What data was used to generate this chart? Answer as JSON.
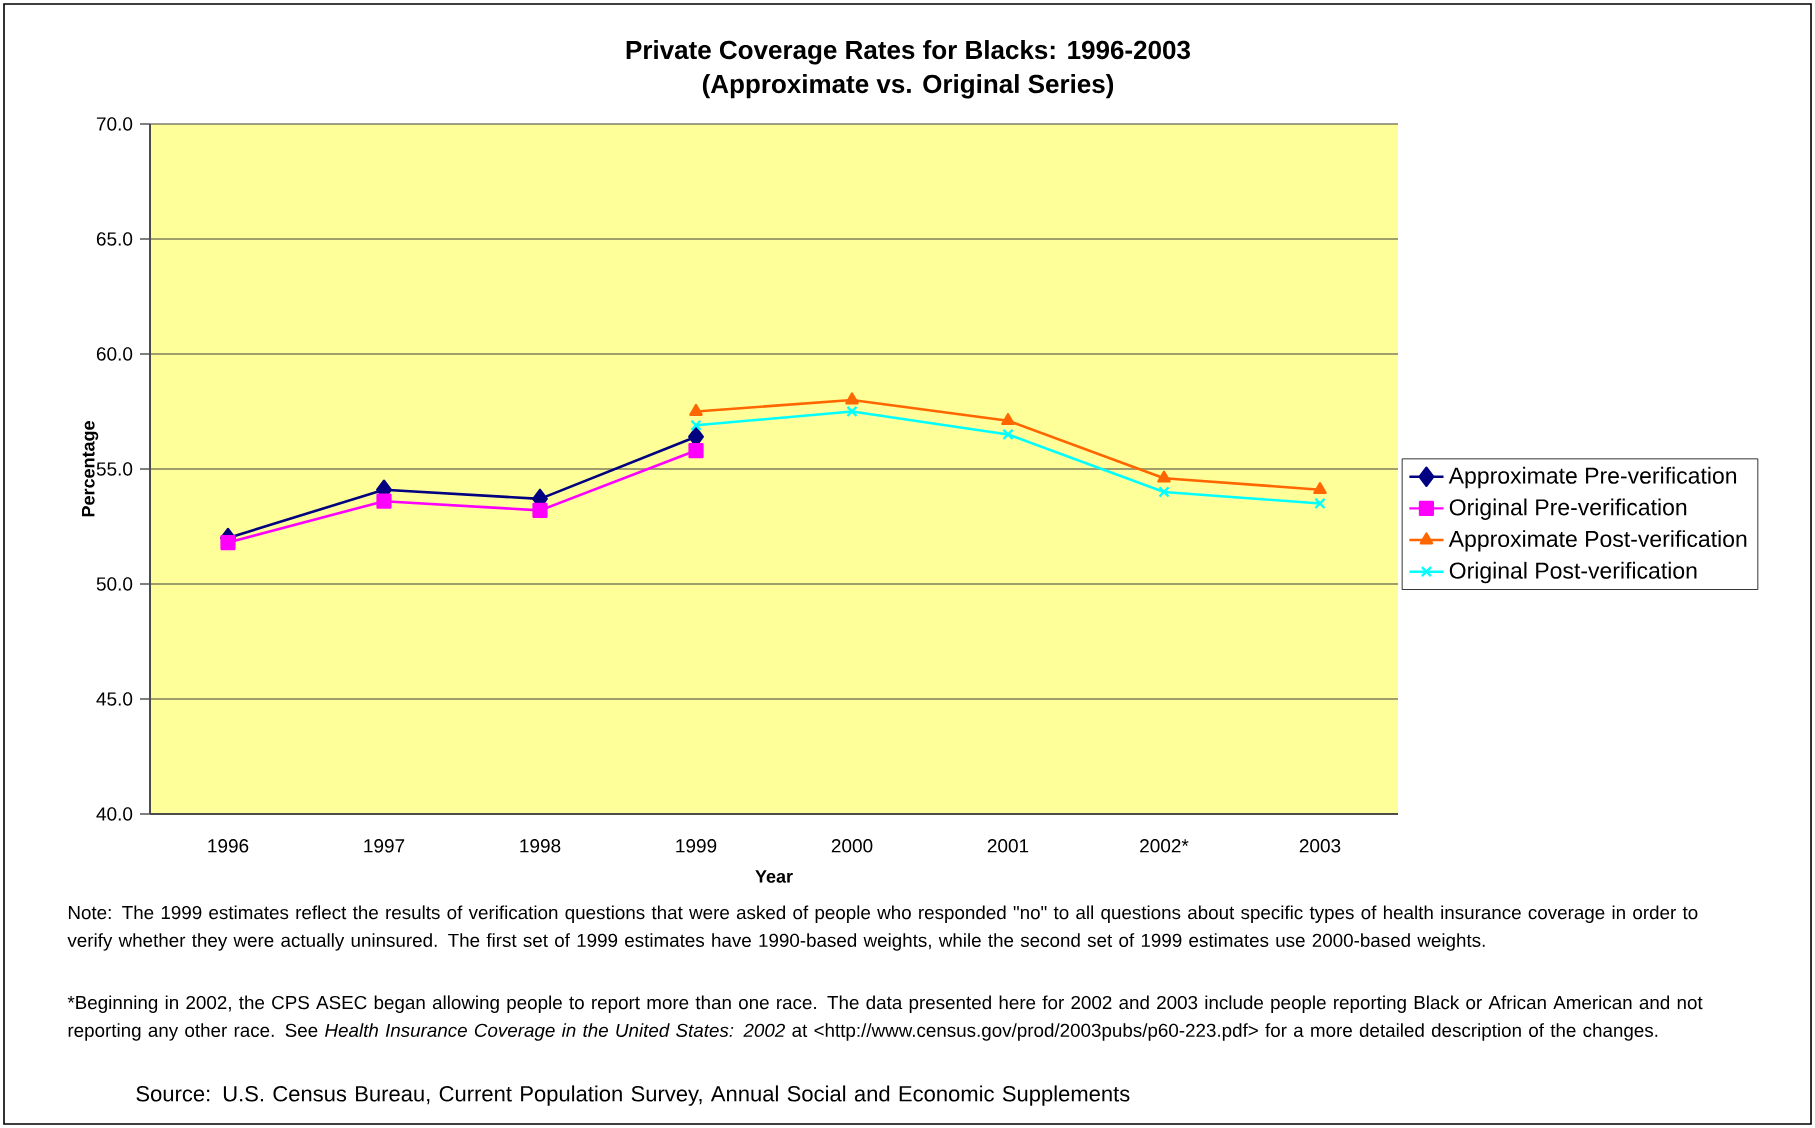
{
  "chart_data": {
    "type": "line",
    "title": "Private Coverage Rates for Blacks: 1996-2003",
    "subtitle": "(Approximate vs. Original Series)",
    "xlabel": "Year",
    "ylabel": "Percentage",
    "categories": [
      "1996",
      "1997",
      "1998",
      "1999",
      "2000",
      "2001",
      "2002*",
      "2003"
    ],
    "series": [
      {
        "name": "Approximate Pre-verification",
        "color": "#000080",
        "marker": "diamond",
        "values": [
          52.0,
          54.1,
          53.7,
          56.4,
          null,
          null,
          null,
          null
        ]
      },
      {
        "name": "Original Pre-verification",
        "color": "#ff00ff",
        "marker": "square",
        "values": [
          51.8,
          53.6,
          53.2,
          55.8,
          null,
          null,
          null,
          null
        ]
      },
      {
        "name": "Approximate Post-verification",
        "color": "#ff6600",
        "marker": "triangle",
        "values": [
          null,
          null,
          null,
          57.5,
          58.0,
          57.1,
          54.6,
          54.1
        ]
      },
      {
        "name": "Original Post-verification",
        "color": "#00ffff",
        "marker": "cross",
        "values": [
          null,
          null,
          null,
          56.9,
          57.5,
          56.5,
          54.0,
          53.5
        ]
      }
    ],
    "ylim": [
      40,
      70
    ],
    "yticks": [
      {
        "value": 40,
        "label": "40.0"
      },
      {
        "value": 45,
        "label": "45.0"
      },
      {
        "value": 50,
        "label": "50.0"
      },
      {
        "value": 55,
        "label": "55.0"
      },
      {
        "value": 60,
        "label": "60.0"
      },
      {
        "value": 65,
        "label": "65.0"
      },
      {
        "value": 70,
        "label": "70.0"
      }
    ],
    "grid": "y",
    "legend": "right",
    "line_style": "solid",
    "annotations": [
      "Note: The 1999 estimates reflect the results of verification questions that were asked of people who responded \"no\" to all questions about specific types of health insurance coverage in order to verify whether they were actually uninsured. The first set of 1999 estimates have 1990-based weights, while the second set of 1999 estimates use 2000-based weights.",
      "*Beginning in 2002, the CPS ASEC began allowing people to report more than one race.  The data presented here for 2002 and 2003 include people reporting  Black or African American and not reporting any other race.  See *Health Insurance Coverage in the United States: 2002*  at <http://www.census.gov/prod/2003pubs/p60-223.pdf> for a more detailed description of the changes.",
      "Source: U.S. Census Bureau, Current Population Survey, Annual Social and Economic Supplements"
    ]
  }
}
